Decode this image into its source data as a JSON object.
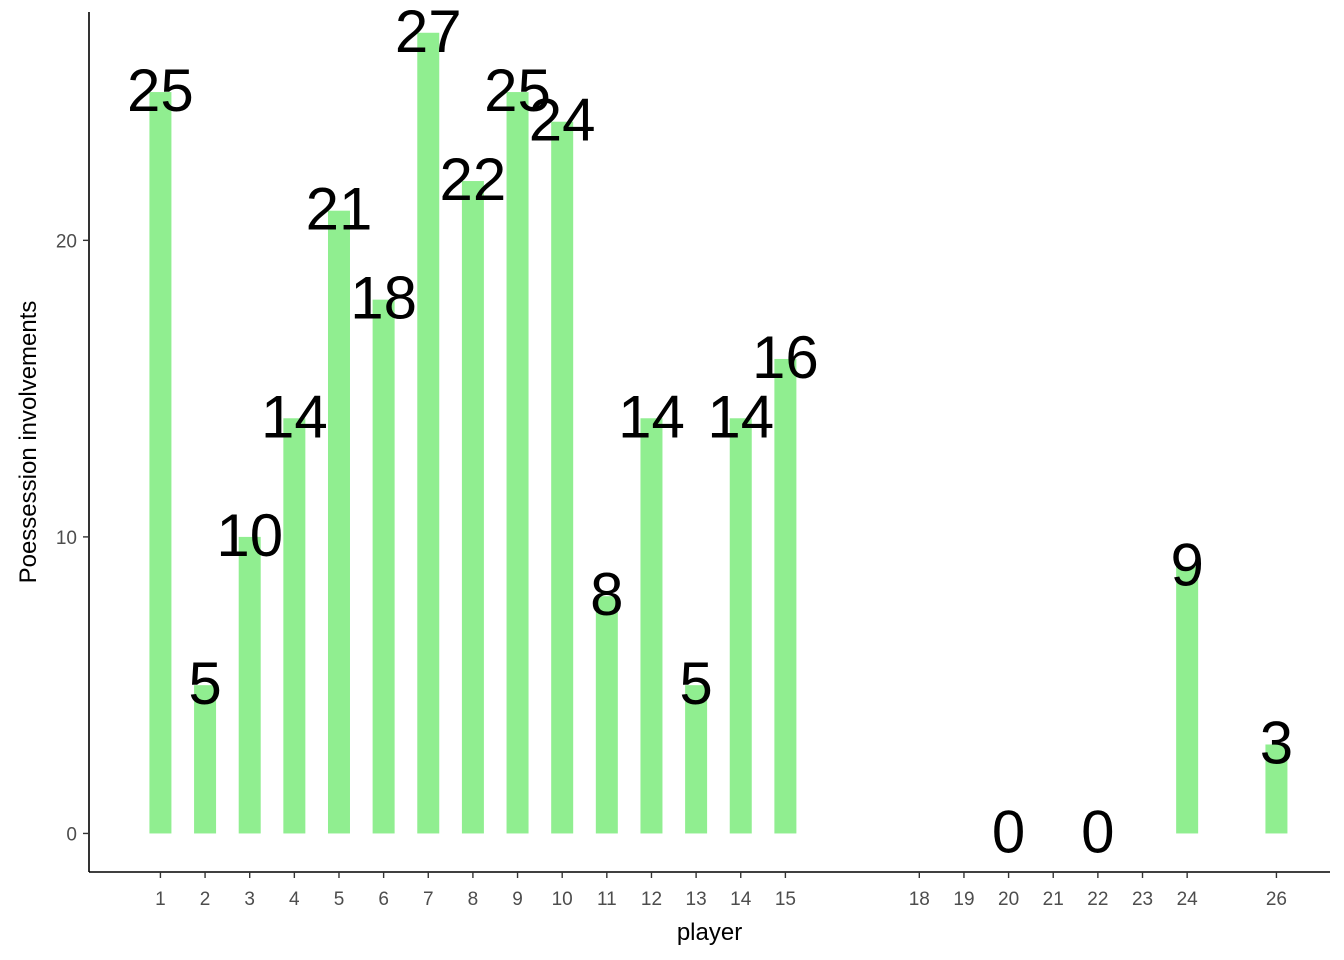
{
  "chart_data": {
    "type": "bar",
    "xlabel": "player",
    "ylabel": "Poessession involvements",
    "bar_color": "#90EE90",
    "grid": false,
    "legend": "none",
    "ylim": [
      -1.3,
      27.7
    ],
    "xlim": [
      -0.6,
      27.2
    ],
    "y_ticks": [
      0,
      10,
      20
    ],
    "x_ticks": [
      1,
      2,
      3,
      4,
      5,
      6,
      7,
      8,
      9,
      10,
      11,
      12,
      13,
      14,
      15,
      18,
      19,
      20,
      21,
      22,
      23,
      24,
      26
    ],
    "points": [
      {
        "x": 1,
        "value": 25
      },
      {
        "x": 2,
        "value": 5
      },
      {
        "x": 3,
        "value": 10
      },
      {
        "x": 4,
        "value": 14
      },
      {
        "x": 5,
        "value": 21
      },
      {
        "x": 6,
        "value": 18
      },
      {
        "x": 7,
        "value": 27
      },
      {
        "x": 8,
        "value": 22
      },
      {
        "x": 9,
        "value": 25
      },
      {
        "x": 10,
        "value": 24
      },
      {
        "x": 11,
        "value": 8
      },
      {
        "x": 12,
        "value": 14
      },
      {
        "x": 13,
        "value": 5
      },
      {
        "x": 14,
        "value": 14
      },
      {
        "x": 15,
        "value": 16
      },
      {
        "x": 20,
        "value": 0
      },
      {
        "x": 22,
        "value": 0
      },
      {
        "x": 24,
        "value": 9
      },
      {
        "x": 26,
        "value": 3
      }
    ]
  }
}
